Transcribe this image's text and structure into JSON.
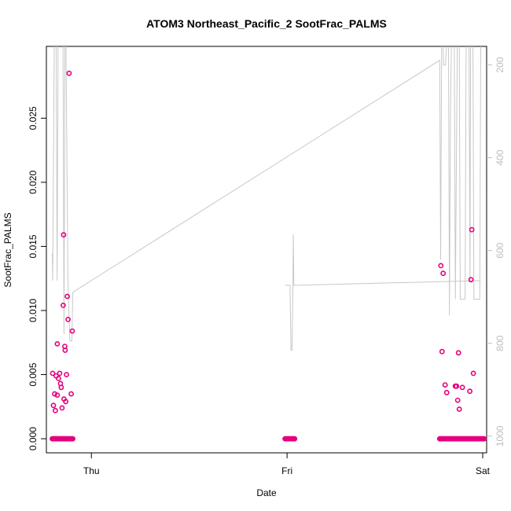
{
  "chart_data": {
    "type": "scatter",
    "title": "ATOM3 Northeast_Pacific_2 SootFrac_PALMS",
    "xlabel": "Date",
    "ylabel": "SootFrac_PALMS",
    "x_ticks": [
      "Thu",
      "Fri",
      "Sat"
    ],
    "x_tick_values": [
      1.0,
      2.0,
      3.0
    ],
    "xlim": [
      0.77,
      3.02
    ],
    "ylim": [
      -0.0011,
      0.0306
    ],
    "y_ticks": [
      0.0,
      0.005,
      0.01,
      0.015,
      0.02,
      0.025
    ],
    "y_tick_labels": [
      "0.000",
      "0.005",
      "0.010",
      "0.015",
      "0.020",
      "0.025"
    ],
    "y2_label": "",
    "y2_ticks": [
      200,
      400,
      600,
      800,
      1000
    ],
    "y2_lim": [
      1036,
      160
    ],
    "grid": false,
    "series": [
      {
        "role": "points",
        "color": "#e6007e",
        "points": [
          [
            0.802,
            0.0051
          ],
          [
            0.806,
            0.0026
          ],
          [
            0.812,
            0.0035
          ],
          [
            0.816,
            0.0022
          ],
          [
            0.82,
            0.0049
          ],
          [
            0.826,
            0.0034
          ],
          [
            0.832,
            0.0047
          ],
          [
            0.838,
            0.0051
          ],
          [
            0.842,
            0.0043
          ],
          [
            0.846,
            0.004
          ],
          [
            0.85,
            0.0024
          ],
          [
            0.856,
            0.0104
          ],
          [
            0.86,
            0.0031
          ],
          [
            0.864,
            0.0072
          ],
          [
            0.866,
            0.0069
          ],
          [
            0.869,
            0.0029
          ],
          [
            0.873,
            0.005
          ],
          [
            0.877,
            0.0111
          ],
          [
            0.881,
            0.0093
          ],
          [
            0.886,
            0.0285
          ],
          [
            0.858,
            0.0159
          ],
          [
            0.826,
            0.0074
          ],
          [
            0.897,
            0.0035
          ],
          [
            0.902,
            0.0084
          ],
          [
            2.786,
            0.0135
          ],
          [
            2.792,
            0.0068
          ],
          [
            2.798,
            0.0129
          ],
          [
            2.808,
            0.0042
          ],
          [
            2.816,
            0.0036
          ],
          [
            2.86,
            0.0041
          ],
          [
            2.866,
            0.0041
          ],
          [
            2.872,
            0.003
          ],
          [
            2.876,
            0.0067
          ],
          [
            2.88,
            0.0023
          ],
          [
            2.896,
            0.004
          ],
          [
            2.934,
            0.0037
          ],
          [
            2.94,
            0.0124
          ],
          [
            2.944,
            0.0163
          ],
          [
            2.952,
            0.0051
          ]
        ],
        "zero_runs": [
          [
            0.8,
            0.905
          ],
          [
            1.99,
            2.04
          ],
          [
            2.78,
            3.01
          ]
        ]
      },
      {
        "role": "pressure-line",
        "color": "#c8c8c8",
        "axis": "right",
        "points": [
          [
            0.8,
            605
          ],
          [
            0.802,
            665
          ],
          [
            0.81,
            155
          ],
          [
            0.82,
            155
          ],
          [
            0.825,
            665
          ],
          [
            0.83,
            155
          ],
          [
            0.855,
            155
          ],
          [
            0.86,
            780
          ],
          [
            0.865,
            155
          ],
          [
            0.87,
            155
          ],
          [
            0.88,
            665
          ],
          [
            0.89,
            795
          ],
          [
            0.9,
            795
          ],
          [
            0.905,
            690
          ],
          [
            2.78,
            190
          ],
          [
            2.785,
            620
          ],
          [
            2.79,
            155
          ],
          [
            2.798,
            155
          ],
          [
            2.8,
            200
          ],
          [
            2.81,
            200
          ],
          [
            2.815,
            155
          ],
          [
            2.825,
            155
          ],
          [
            2.83,
            740
          ],
          [
            2.835,
            300
          ],
          [
            2.84,
            155
          ],
          [
            2.855,
            155
          ],
          [
            2.86,
            705
          ],
          [
            2.87,
            155
          ],
          [
            2.88,
            155
          ],
          [
            2.885,
            705
          ],
          [
            2.91,
            705
          ],
          [
            2.915,
            155
          ],
          [
            2.93,
            155
          ],
          [
            2.935,
            665
          ],
          [
            2.938,
            155
          ],
          [
            2.95,
            155
          ],
          [
            2.955,
            705
          ],
          [
            2.985,
            705
          ],
          [
            2.99,
            155
          ]
        ],
        "fri_segment": [
          [
            1.99,
            675
          ],
          [
            2.015,
            675
          ],
          [
            2.02,
            815
          ],
          [
            2.025,
            815
          ],
          [
            2.03,
            675
          ],
          [
            2.032,
            565
          ],
          [
            2.035,
            675
          ],
          [
            2.99,
            665
          ]
        ]
      }
    ]
  }
}
